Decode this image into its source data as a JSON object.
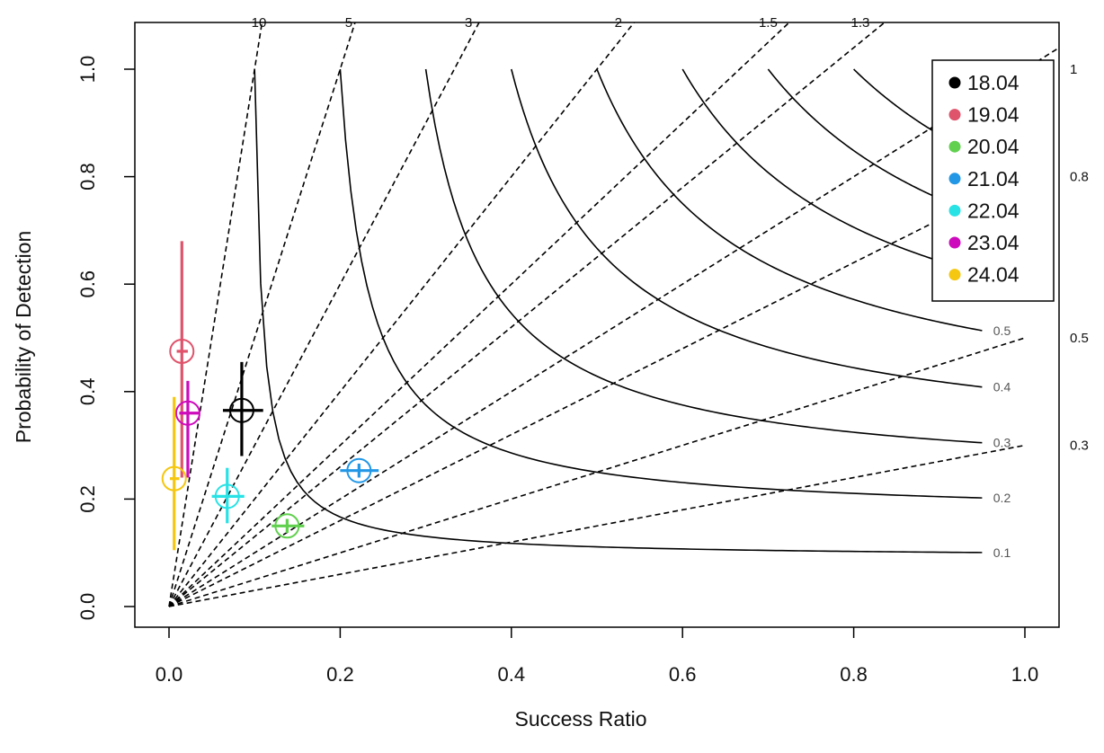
{
  "chart_data": {
    "type": "scatter",
    "title": "",
    "xlabel": "Success Ratio",
    "ylabel": "Probability of Detection",
    "xlim": [
      0,
      1
    ],
    "ylim": [
      0,
      1
    ],
    "x_ticks": [
      "0.0",
      "0.2",
      "0.4",
      "0.6",
      "0.8",
      "1.0"
    ],
    "y_ticks": [
      "0.0",
      "0.2",
      "0.4",
      "0.6",
      "0.8",
      "1.0"
    ],
    "grid": false,
    "legend_position": "top-right",
    "bias_lines": [
      {
        "value": 10,
        "label": "10"
      },
      {
        "value": 5,
        "label": "5"
      },
      {
        "value": 3,
        "label": "3"
      },
      {
        "value": 2,
        "label": "2"
      },
      {
        "value": 1.5,
        "label": "1.5"
      },
      {
        "value": 1.3,
        "label": "1.3"
      },
      {
        "value": 1,
        "label": "1"
      },
      {
        "value": 0.8,
        "label": "0.8"
      },
      {
        "value": 0.5,
        "label": "0.5"
      },
      {
        "value": 0.3,
        "label": "0.3"
      }
    ],
    "csi_lines": [
      {
        "value": 0.1,
        "label": "0.1"
      },
      {
        "value": 0.2,
        "label": "0.2"
      },
      {
        "value": 0.3,
        "label": "0.3"
      },
      {
        "value": 0.4,
        "label": "0.4"
      },
      {
        "value": 0.5,
        "label": "0.5"
      },
      {
        "value": 0.6,
        "label": ""
      },
      {
        "value": 0.7,
        "label": ""
      },
      {
        "value": 0.8,
        "label": ""
      },
      {
        "value": 0.9,
        "label": ""
      }
    ],
    "series": [
      {
        "name": "18.04",
        "color": "#000000",
        "sr": 0.085,
        "pod": 0.365,
        "sr_range": [
          0.063,
          0.11
        ],
        "pod_range": [
          0.28,
          0.455
        ]
      },
      {
        "name": "19.04",
        "color": "#df536b",
        "sr": 0.015,
        "pod": 0.475,
        "sr_range": [
          0.009,
          0.022
        ],
        "pod_range": [
          0.24,
          0.68
        ]
      },
      {
        "name": "20.04",
        "color": "#61d04f",
        "sr": 0.138,
        "pod": 0.15,
        "sr_range": [
          0.12,
          0.158
        ],
        "pod_range": [
          0.137,
          0.163
        ]
      },
      {
        "name": "21.04",
        "color": "#2297e6",
        "sr": 0.222,
        "pod": 0.253,
        "sr_range": [
          0.2,
          0.245
        ],
        "pod_range": [
          0.24,
          0.266
        ]
      },
      {
        "name": "22.04",
        "color": "#28e2e5",
        "sr": 0.068,
        "pod": 0.205,
        "sr_range": [
          0.05,
          0.088
        ],
        "pod_range": [
          0.155,
          0.258
        ]
      },
      {
        "name": "23.04",
        "color": "#cd0bbc",
        "sr": 0.022,
        "pod": 0.36,
        "sr_range": [
          0.012,
          0.035
        ],
        "pod_range": [
          0.24,
          0.42
        ]
      },
      {
        "name": "24.04",
        "color": "#f5c710",
        "sr": 0.006,
        "pod": 0.238,
        "sr_range": [
          0.001,
          0.012
        ],
        "pod_range": [
          0.105,
          0.39
        ]
      }
    ]
  }
}
